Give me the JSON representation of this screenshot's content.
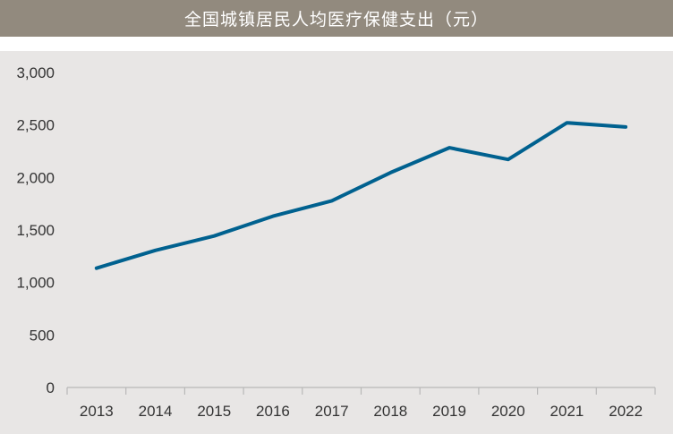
{
  "chart_data": {
    "type": "line",
    "title": "全国城镇居民人均医疗保健支出（元）",
    "xlabel": "",
    "ylabel": "",
    "categories": [
      "2013",
      "2014",
      "2015",
      "2016",
      "2017",
      "2018",
      "2019",
      "2020",
      "2021",
      "2022"
    ],
    "series": [
      {
        "values": [
          1136,
          1306,
          1443,
          1631,
          1778,
          2046,
          2283,
          2172,
          2521,
          2481
        ]
      }
    ],
    "ylim": [
      0,
      3000
    ],
    "yticks": [
      0,
      500,
      1000,
      1500,
      2000,
      2500,
      3000
    ],
    "ytick_labels": [
      "0",
      "500",
      "1,000",
      "1,500",
      "2,000",
      "2,500",
      "3,000"
    ],
    "grid": false,
    "legend": "none",
    "colors": {
      "line": "#00618f",
      "title_bar": "#928a7e",
      "plot_background": "#e8e6e5",
      "axis": "#b8b8b8"
    }
  }
}
